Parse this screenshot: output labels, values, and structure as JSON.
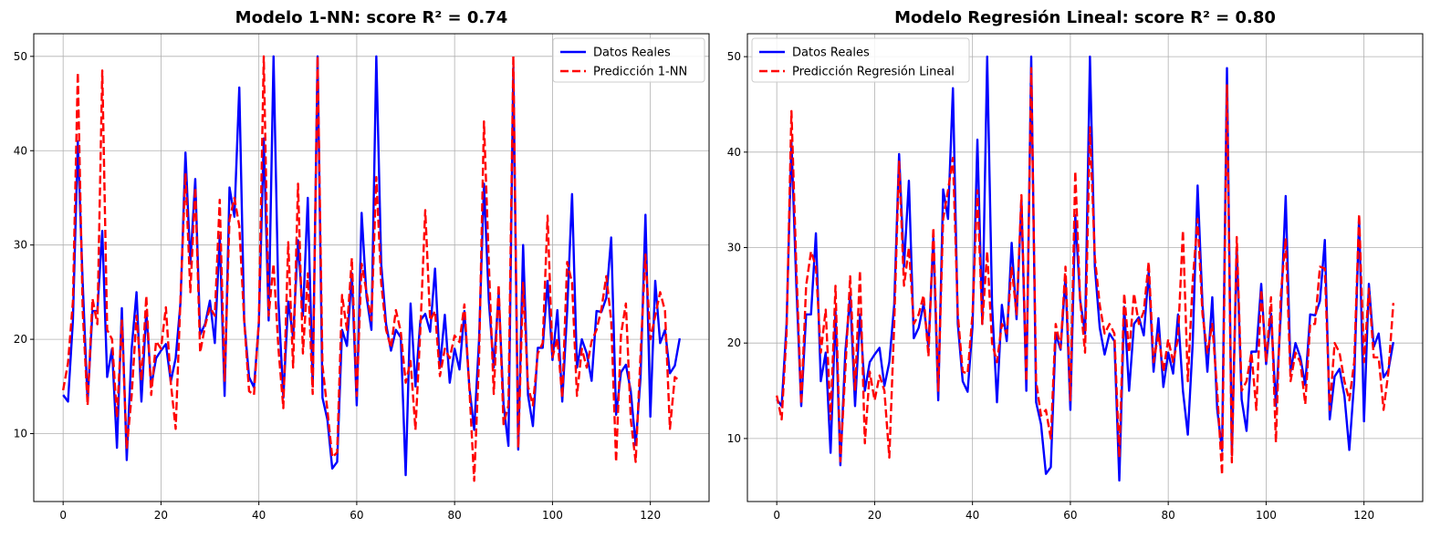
{
  "chart_data": [
    {
      "type": "line",
      "title": "Modelo 1-NN: score R² = 0.74",
      "xlabel": "",
      "ylabel": "",
      "xlim": [
        -6,
        132
      ],
      "ylim": [
        2.8,
        52.4
      ],
      "xticks": [
        0,
        20,
        40,
        60,
        80,
        100,
        120
      ],
      "yticks": [
        10,
        20,
        30,
        40,
        50
      ],
      "grid": true,
      "legend_position": "top-right",
      "x_start": 0,
      "series": [
        {
          "name": "Datos Reales",
          "color": "#0000ff",
          "dash": "solid",
          "values": [
            14.1,
            13.4,
            22.0,
            41.0,
            26.0,
            13.4,
            23.0,
            23.0,
            31.5,
            16.0,
            19.0,
            8.5,
            23.3,
            7.2,
            19.0,
            25.0,
            13.4,
            23.0,
            15.0,
            18.0,
            18.8,
            19.5,
            15.5,
            18.0,
            24.0,
            39.8,
            28.0,
            37.0,
            20.5,
            21.6,
            24.1,
            19.6,
            31.0,
            14.0,
            36.1,
            33.0,
            46.7,
            22.0,
            16.0,
            14.9,
            21.7,
            41.3,
            22.0,
            50.0,
            24.0,
            13.8,
            24.0,
            20.2,
            30.5,
            22.5,
            35.0,
            15.0,
            50.0,
            13.8,
            11.5,
            6.3,
            7.0,
            21.0,
            19.3,
            27.0,
            13.0,
            33.4,
            24.5,
            21.0,
            50.0,
            28.0,
            21.6,
            18.8,
            21.0,
            20.2,
            5.6,
            23.8,
            15.0,
            22.0,
            22.7,
            20.8,
            27.5,
            17.0,
            22.6,
            15.4,
            19.0,
            16.8,
            23.0,
            15.0,
            10.4,
            20.0,
            36.5,
            24.0,
            17.0,
            24.8,
            13.1,
            8.7,
            48.8,
            8.3,
            30.0,
            14.1,
            10.8,
            19.1,
            19.1,
            26.2,
            17.8,
            23.1,
            13.4,
            23.0,
            35.4,
            17.0,
            20.0,
            18.5,
            15.6,
            23.0,
            22.9,
            24.4,
            30.8,
            12.0,
            16.5,
            17.3,
            14.5,
            8.8,
            16.0,
            33.2,
            11.8,
            26.2,
            19.6,
            21.0,
            16.4,
            17.2,
            20.1
          ]
        },
        {
          "name": "Predicción 1-NN",
          "color": "#ff0000",
          "dash": "dashed",
          "values": [
            14.6,
            17.5,
            24.0,
            48.3,
            23.0,
            13.0,
            24.3,
            21.6,
            48.5,
            21.0,
            20.0,
            11.7,
            22.0,
            8.4,
            14.0,
            22.5,
            15.6,
            24.6,
            14.1,
            19.8,
            19.0,
            23.4,
            15.4,
            10.5,
            24.6,
            37.6,
            25.0,
            36.1,
            18.6,
            21.4,
            23.4,
            22.5,
            34.8,
            15.6,
            32.7,
            35.0,
            32.0,
            22.0,
            14.5,
            14.1,
            22.0,
            50.0,
            22.5,
            28.0,
            19.0,
            12.7,
            30.3,
            17.0,
            36.5,
            18.5,
            27.0,
            14.2,
            50.0,
            17.2,
            12.5,
            7.5,
            8.0,
            24.7,
            21.0,
            28.6,
            14.0,
            28.0,
            25.0,
            22.0,
            37.2,
            26.0,
            21.0,
            19.1,
            23.1,
            20.8,
            15.4,
            17.7,
            10.4,
            21.0,
            33.7,
            22.0,
            23.0,
            16.1,
            19.0,
            18.0,
            20.4,
            19.7,
            23.7,
            15.0,
            5.0,
            18.0,
            43.1,
            28.0,
            14.2,
            25.8,
            11.0,
            13.0,
            50.0,
            8.5,
            26.0,
            15.0,
            13.0,
            18.5,
            19.6,
            33.1,
            18.1,
            20.1,
            13.8,
            28.2,
            26.0,
            14.0,
            19.0,
            17.0,
            19.8,
            21.0,
            23.2,
            26.7,
            22.0,
            7.0,
            20.5,
            23.8,
            11.5,
            7.0,
            18.5,
            29.0,
            20.0,
            22.5,
            25.0,
            23.0,
            10.5,
            16.0,
            15.6
          ]
        }
      ]
    },
    {
      "type": "line",
      "title": "Modelo Regresión Lineal: score R² = 0.80",
      "xlabel": "",
      "ylabel": "",
      "xlim": [
        -6,
        132
      ],
      "ylim": [
        3.4,
        52.4
      ],
      "xticks": [
        0,
        20,
        40,
        60,
        80,
        100,
        120
      ],
      "yticks": [
        10,
        20,
        30,
        40,
        50
      ],
      "grid": true,
      "legend_position": "top-left",
      "x_start": 0,
      "series": [
        {
          "name": "Datos Reales",
          "color": "#0000ff",
          "dash": "solid",
          "values": [
            14.1,
            13.4,
            22.0,
            41.0,
            26.0,
            13.4,
            23.0,
            23.0,
            31.5,
            16.0,
            19.0,
            8.5,
            23.3,
            7.2,
            19.0,
            25.0,
            13.4,
            23.0,
            15.0,
            18.0,
            18.8,
            19.5,
            15.5,
            18.0,
            24.0,
            39.8,
            28.0,
            37.0,
            20.5,
            21.6,
            24.1,
            19.6,
            31.0,
            14.0,
            36.1,
            33.0,
            46.7,
            22.0,
            16.0,
            14.9,
            21.7,
            41.3,
            22.0,
            50.0,
            24.0,
            13.8,
            24.0,
            20.2,
            30.5,
            22.5,
            35.0,
            15.0,
            50.0,
            13.8,
            11.5,
            6.3,
            7.0,
            21.0,
            19.3,
            27.0,
            13.0,
            33.4,
            24.5,
            21.0,
            50.0,
            28.0,
            21.6,
            18.8,
            21.0,
            20.2,
            5.6,
            23.8,
            15.0,
            22.0,
            22.7,
            20.8,
            27.5,
            17.0,
            22.6,
            15.4,
            19.0,
            16.8,
            23.0,
            15.0,
            10.4,
            20.0,
            36.5,
            24.0,
            17.0,
            24.8,
            13.1,
            8.7,
            48.8,
            8.3,
            30.0,
            14.1,
            10.8,
            19.1,
            19.1,
            26.2,
            17.8,
            23.1,
            13.4,
            23.0,
            35.4,
            17.0,
            20.0,
            18.5,
            15.6,
            23.0,
            22.9,
            24.4,
            30.8,
            12.0,
            16.5,
            17.3,
            14.5,
            8.8,
            16.0,
            33.2,
            11.8,
            26.2,
            19.6,
            21.0,
            16.4,
            17.2,
            20.1
          ]
        },
        {
          "name": "Predicción Regresión Lineal",
          "color": "#ff0000",
          "dash": "dashed",
          "values": [
            14.5,
            12.0,
            21.0,
            44.3,
            28.0,
            13.6,
            26.0,
            29.6,
            28.0,
            19.0,
            23.5,
            12.0,
            26.0,
            7.6,
            17.0,
            27.0,
            15.0,
            27.6,
            9.5,
            17.0,
            14.0,
            16.6,
            15.0,
            8.0,
            22.0,
            39.0,
            26.0,
            30.0,
            22.0,
            23.0,
            25.0,
            18.6,
            32.1,
            15.0,
            33.0,
            36.0,
            39.4,
            23.0,
            17.0,
            16.8,
            23.0,
            36.0,
            22.0,
            29.6,
            20.0,
            18.0,
            22.0,
            21.0,
            28.0,
            23.0,
            35.5,
            16.0,
            48.8,
            16.0,
            12.4,
            13.0,
            10.0,
            22.0,
            19.5,
            28.0,
            14.0,
            38.0,
            24.5,
            19.0,
            42.6,
            29.0,
            24.0,
            21.0,
            22.0,
            21.0,
            8.0,
            25.2,
            19.0,
            25.2,
            22.0,
            23.3,
            28.5,
            18.0,
            21.0,
            17.0,
            20.4,
            18.0,
            20.5,
            31.8,
            16.0,
            26.5,
            33.0,
            23.0,
            19.0,
            22.0,
            15.0,
            6.2,
            47.0,
            7.5,
            31.1,
            15.0,
            16.0,
            19.0,
            13.0,
            25.6,
            18.0,
            24.8,
            9.6,
            25.0,
            31.0,
            16.0,
            19.0,
            18.0,
            13.6,
            22.0,
            22.0,
            28.0,
            27.8,
            13.0,
            20.0,
            19.0,
            16.0,
            14.0,
            18.0,
            33.5,
            18.0,
            25.7,
            18.5,
            18.5,
            13.0,
            17.0,
            24.2
          ]
        }
      ]
    }
  ]
}
